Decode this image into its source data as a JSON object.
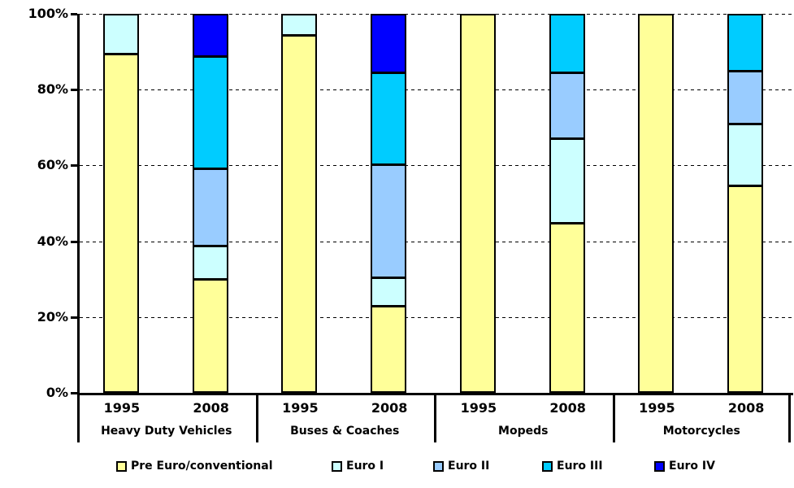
{
  "chart_data": {
    "type": "bar",
    "subtype": "stacked-100-percent",
    "unit": "%",
    "ylim": [
      0,
      100
    ],
    "yticks": [
      "0%",
      "20%",
      "40%",
      "60%",
      "80%",
      "100%"
    ],
    "ytick_values": [
      0,
      20,
      40,
      60,
      80,
      100
    ],
    "grid": "horizontal-dashed",
    "legend_position": "bottom",
    "series": [
      {
        "name": "Pre Euro/conventional",
        "color": "#FFFF99"
      },
      {
        "name": "Euro I",
        "color": "#CCFFFF"
      },
      {
        "name": "Euro II",
        "color": "#99CCFF"
      },
      {
        "name": "Euro III",
        "color": "#00CCFF"
      },
      {
        "name": "Euro IV",
        "color": "#0000FF"
      }
    ],
    "groups": [
      {
        "label": "Heavy Duty Vehicles",
        "bars": [
          {
            "label": "1995",
            "segments": [
              90,
              10,
              0,
              0,
              0
            ]
          },
          {
            "label": "2008",
            "segments": [
              30,
              9,
              20.5,
              30,
              10.5
            ]
          }
        ]
      },
      {
        "label": "Buses & Coaches",
        "bars": [
          {
            "label": "1995",
            "segments": [
              95,
              5,
              0,
              0,
              0
            ]
          },
          {
            "label": "2008",
            "segments": [
              23,
              7.5,
              30,
              24.5,
              15
            ]
          }
        ]
      },
      {
        "label": "Mopeds",
        "bars": [
          {
            "label": "1995",
            "segments": [
              100,
              0,
              0,
              0,
              0
            ]
          },
          {
            "label": "2008",
            "segments": [
              45,
              22.5,
              17.5,
              15,
              0
            ]
          }
        ]
      },
      {
        "label": "Motorcycles",
        "bars": [
          {
            "label": "1995",
            "segments": [
              100,
              0,
              0,
              0,
              0
            ]
          },
          {
            "label": "2008",
            "segments": [
              55,
              16.5,
              14,
              14.5,
              0
            ]
          }
        ]
      }
    ],
    "style": {
      "background": "#FFFFFF",
      "axis_color": "#000000",
      "text_color": "#000000"
    }
  }
}
